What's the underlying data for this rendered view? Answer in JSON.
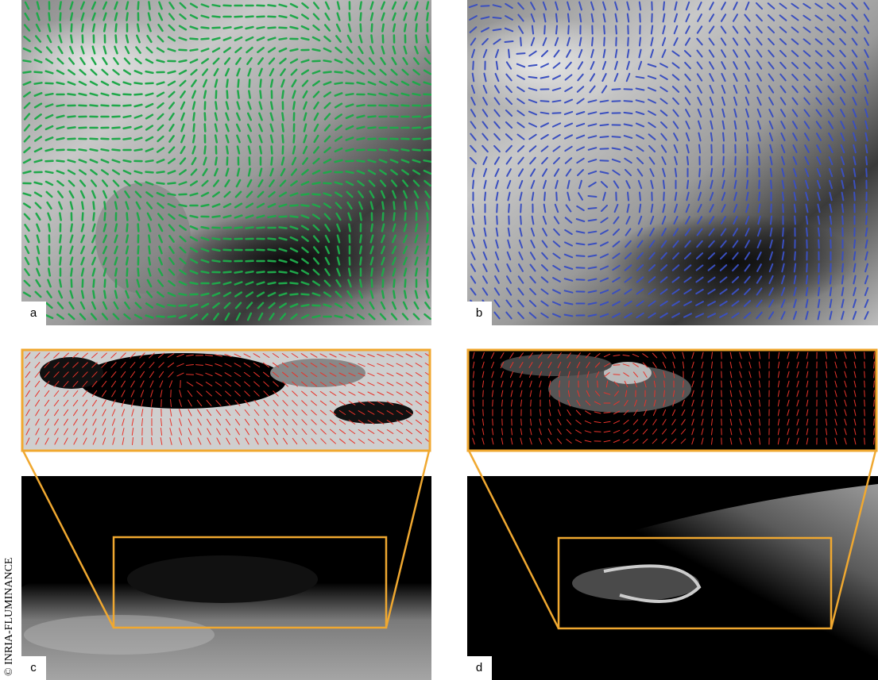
{
  "panels": [
    {
      "label": "a"
    },
    {
      "label": "b"
    },
    {
      "label": "c"
    },
    {
      "label": "d"
    }
  ],
  "credit": "© INRIA-FLUMINANCE"
}
